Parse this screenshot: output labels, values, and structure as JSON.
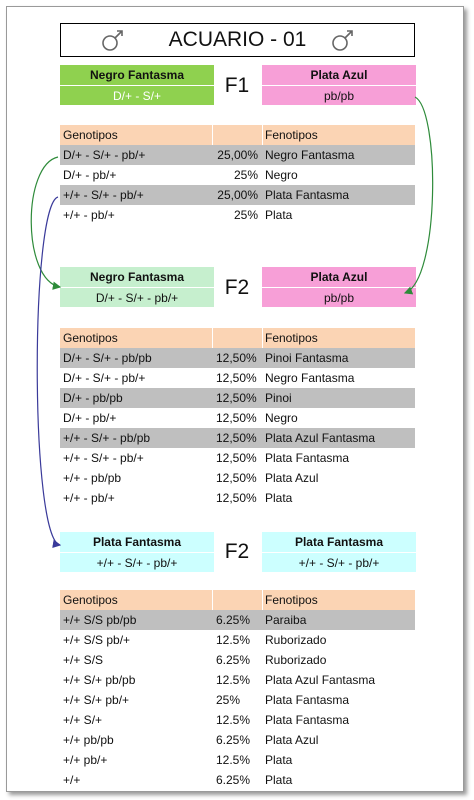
{
  "title": "ACUARIO - 01",
  "cross1": {
    "generation": "F1",
    "left": {
      "name": "Negro Fantasma",
      "genotype": "D/+ - S/+"
    },
    "right": {
      "name": "Plata Azul",
      "genotype": "pb/pb"
    }
  },
  "table1": {
    "header": [
      "Genotipos",
      "Fenotipos"
    ],
    "rows": [
      [
        "D/+ - S/+ - pb/+",
        "25,00%",
        "Negro Fantasma"
      ],
      [
        "D/+ - pb/+",
        "25%",
        "Negro"
      ],
      [
        "+/+ - S/+ - pb/+",
        "25,00%",
        "Plata Fantasma"
      ],
      [
        "+/+ - pb/+",
        "25%",
        "Plata"
      ]
    ]
  },
  "cross2": {
    "generation": "F2",
    "left": {
      "name": "Negro Fantasma",
      "genotype": "D/+ - S/+ - pb/+"
    },
    "right": {
      "name": "Plata Azul",
      "genotype": "pb/pb"
    }
  },
  "table2": {
    "header": [
      "Genotipos",
      "Fenotipos"
    ],
    "rows": [
      [
        "D/+ - S/+ - pb/pb",
        "12,50%",
        "Pinoi Fantasma"
      ],
      [
        "D/+ - S/+ - pb/+",
        "12,50%",
        "Negro Fantasma"
      ],
      [
        "D/+ - pb/pb",
        "12,50%",
        "Pinoi"
      ],
      [
        "D/+ - pb/+",
        "12,50%",
        "Negro"
      ],
      [
        "+/+ - S/+ - pb/pb",
        "12,50%",
        "Plata Azul Fantasma"
      ],
      [
        "+/+ - S/+ - pb/+",
        "12,50%",
        "Plata Fantasma"
      ],
      [
        "+/+ - pb/pb",
        "12,50%",
        "Plata Azul"
      ],
      [
        "+/+ - pb/+",
        "12,50%",
        "Plata"
      ]
    ]
  },
  "cross3": {
    "generation": "F2",
    "left": {
      "name": "Plata Fantasma",
      "genotype": "+/+ - S/+ - pb/+"
    },
    "right": {
      "name": "Plata Fantasma",
      "genotype": "+/+ - S/+ - pb/+"
    }
  },
  "table3": {
    "header": [
      "Genotipos",
      "Fenotipos"
    ],
    "rows": [
      [
        "+/+ S/S pb/pb",
        "6.25%",
        "Paraiba"
      ],
      [
        "+/+ S/S pb/+",
        "12.5%",
        "Ruborizado"
      ],
      [
        "+/+ S/S",
        "6.25%",
        "Ruborizado"
      ],
      [
        "+/+ S/+ pb/pb",
        "12.5%",
        "Plata Azul Fantasma"
      ],
      [
        "+/+ S/+ pb/+",
        "25%",
        "Plata Fantasma"
      ],
      [
        "+/+ S/+",
        "12.5%",
        "Plata Fantasma"
      ],
      [
        "+/+ pb/pb",
        "6.25%",
        "Plata Azul"
      ],
      [
        "+/+ pb/+",
        "12.5%",
        "Plata"
      ],
      [
        "+/+",
        "6.25%",
        "Plata"
      ]
    ]
  }
}
